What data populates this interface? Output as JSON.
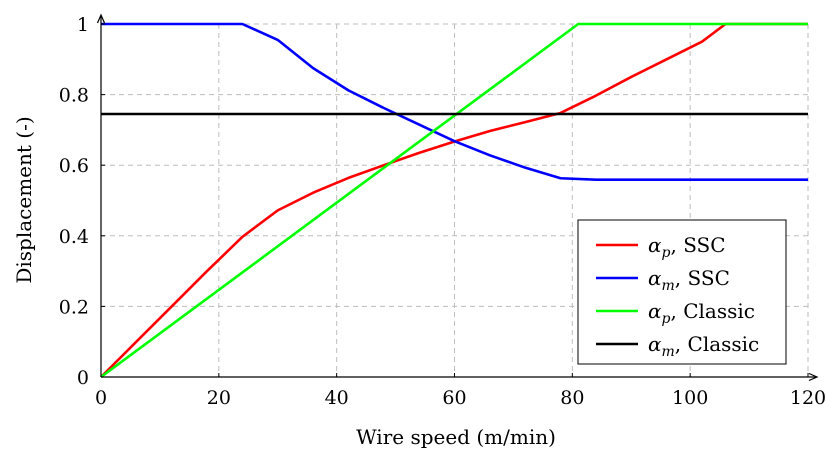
{
  "chart_data": {
    "type": "line",
    "xlabel": "Wire speed (m/min)",
    "ylabel": "Displacement (-)",
    "xlim": [
      0,
      120
    ],
    "ylim": [
      0,
      1
    ],
    "xticks": [
      0,
      20,
      40,
      60,
      80,
      100,
      120
    ],
    "yticks": [
      0,
      0.2,
      0.4,
      0.6,
      0.8,
      1
    ],
    "xtick_labels": [
      "0",
      "20",
      "40",
      "60",
      "80",
      "100",
      "120"
    ],
    "ytick_labels": [
      "0",
      "0.2",
      "0.4",
      "0.6",
      "0.8",
      "1"
    ],
    "grid": true,
    "legend_position": "bottom-right",
    "series": [
      {
        "name": "αp, SSC",
        "symbol": "α",
        "subscript": "p",
        "suffix": ", SSC",
        "color": "#ff0000",
        "x": [
          0,
          6,
          12,
          18,
          24,
          30,
          36,
          42,
          48,
          54,
          60,
          66,
          72,
          78,
          84,
          90,
          96,
          102,
          106,
          120
        ],
        "y": [
          0,
          0.1,
          0.2,
          0.3,
          0.397,
          0.472,
          0.522,
          0.564,
          0.6,
          0.635,
          0.667,
          0.697,
          0.722,
          0.748,
          0.797,
          0.85,
          0.9,
          0.95,
          1,
          1
        ]
      },
      {
        "name": "αm, SSC",
        "symbol": "α",
        "subscript": "m",
        "suffix": ", SSC",
        "color": "#0000ff",
        "x": [
          0,
          24,
          30,
          36,
          42,
          48,
          54,
          60,
          66,
          72,
          78,
          84,
          120
        ],
        "y": [
          1,
          1,
          0.955,
          0.875,
          0.812,
          0.762,
          0.715,
          0.668,
          0.628,
          0.593,
          0.563,
          0.559,
          0.559
        ]
      },
      {
        "name": "αp, Classic",
        "symbol": "α",
        "subscript": "p",
        "suffix": ", Classic",
        "color": "#00ff00",
        "x": [
          0,
          81,
          120
        ],
        "y": [
          0,
          1,
          1
        ]
      },
      {
        "name": "αm, Classic",
        "symbol": "α",
        "subscript": "m",
        "suffix": ", Classic",
        "color": "#000000",
        "x": [
          0,
          120
        ],
        "y": [
          0.745,
          0.745
        ]
      }
    ]
  }
}
